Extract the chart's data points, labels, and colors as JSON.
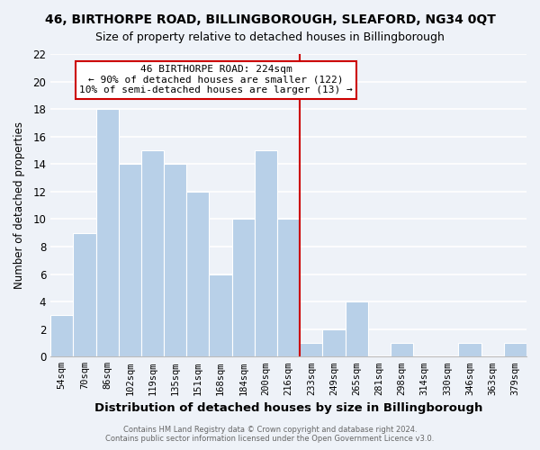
{
  "title": "46, BIRTHORPE ROAD, BILLINGBOROUGH, SLEAFORD, NG34 0QT",
  "subtitle": "Size of property relative to detached houses in Billingborough",
  "xlabel": "Distribution of detached houses by size in Billingborough",
  "ylabel": "Number of detached properties",
  "bar_labels": [
    "54sqm",
    "70sqm",
    "86sqm",
    "102sqm",
    "119sqm",
    "135sqm",
    "151sqm",
    "168sqm",
    "184sqm",
    "200sqm",
    "216sqm",
    "233sqm",
    "249sqm",
    "265sqm",
    "281sqm",
    "298sqm",
    "314sqm",
    "330sqm",
    "346sqm",
    "363sqm",
    "379sqm"
  ],
  "bar_heights": [
    3,
    9,
    18,
    14,
    15,
    14,
    12,
    6,
    10,
    15,
    10,
    1,
    2,
    4,
    0,
    1,
    0,
    0,
    1,
    0,
    1
  ],
  "bar_color": "#b8d0e8",
  "bar_edge_color": "#ffffff",
  "vline_color": "#cc0000",
  "annotation_line1": "46 BIRTHORPE ROAD: 224sqm",
  "annotation_line2": "← 90% of detached houses are smaller (122)",
  "annotation_line3": "10% of semi-detached houses are larger (13) →",
  "annotation_box_color": "#ffffff",
  "annotation_box_edge": "#cc0000",
  "ylim": [
    0,
    22
  ],
  "yticks": [
    0,
    2,
    4,
    6,
    8,
    10,
    12,
    14,
    16,
    18,
    20,
    22
  ],
  "footer1": "Contains HM Land Registry data © Crown copyright and database right 2024.",
  "footer2": "Contains public sector information licensed under the Open Government Licence v3.0.",
  "bg_color": "#eef2f8",
  "grid_color": "#ffffff"
}
